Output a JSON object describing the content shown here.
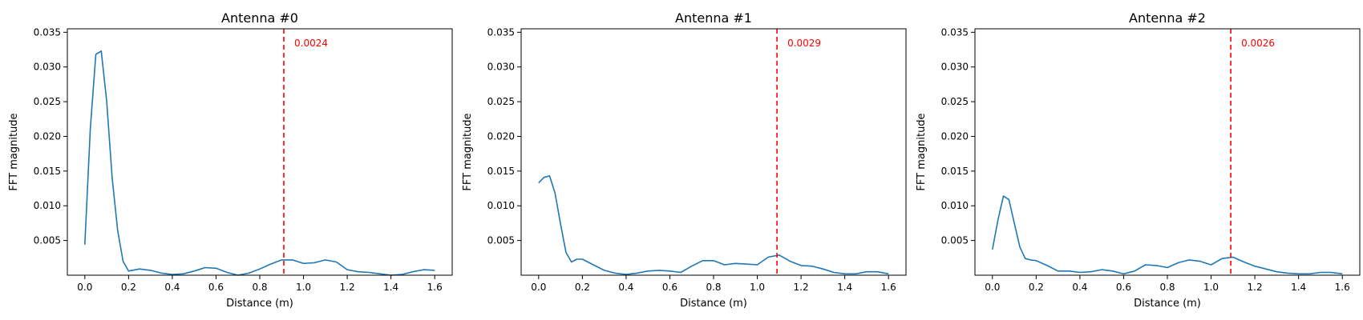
{
  "chart_data": [
    {
      "type": "line",
      "title": "Antenna #0",
      "xlabel": "Distance (m)",
      "ylabel": "FFT magnitude",
      "xlim": [
        -0.08,
        1.68
      ],
      "ylim": [
        0.0,
        0.0355
      ],
      "xticks": [
        0.0,
        0.2,
        0.4,
        0.6,
        0.8,
        1.0,
        1.2,
        1.4,
        1.6
      ],
      "xtick_labels": [
        "0.0",
        "0.2",
        "0.4",
        "0.6",
        "0.8",
        "1.0",
        "1.2",
        "1.4",
        "1.6"
      ],
      "yticks": [
        0.005,
        0.01,
        0.015,
        0.02,
        0.025,
        0.03,
        0.035
      ],
      "ytick_labels": [
        "0.005",
        "0.010",
        "0.015",
        "0.020",
        "0.025",
        "0.030",
        "0.035"
      ],
      "grid": false,
      "line_color": "#1f77b4",
      "x": [
        0.0,
        0.025,
        0.05,
        0.075,
        0.1,
        0.125,
        0.15,
        0.175,
        0.2,
        0.25,
        0.3,
        0.35,
        0.4,
        0.45,
        0.5,
        0.55,
        0.6,
        0.65,
        0.7,
        0.75,
        0.8,
        0.85,
        0.9,
        0.95,
        1.0,
        1.05,
        1.1,
        1.15,
        1.2,
        1.25,
        1.3,
        1.35,
        1.4,
        1.45,
        1.5,
        1.55,
        1.6
      ],
      "y": [
        0.0044,
        0.021,
        0.0318,
        0.0323,
        0.025,
        0.014,
        0.0065,
        0.002,
        0.0006,
        0.0009,
        0.0007,
        0.0003,
        0.0001,
        0.0002,
        0.0006,
        0.0011,
        0.001,
        0.0004,
        0.0,
        0.0003,
        0.0009,
        0.0016,
        0.0022,
        0.0022,
        0.0017,
        0.0018,
        0.0022,
        0.0019,
        0.0008,
        0.0005,
        0.0004,
        0.0002,
        0.0,
        0.0001,
        0.0005,
        0.0008,
        0.0007
      ],
      "vline": {
        "x": 0.91,
        "color": "#ff0000",
        "style": "dashed",
        "label": "0.0024"
      }
    },
    {
      "type": "line",
      "title": "Antenna #1",
      "xlabel": "Distance (m)",
      "ylabel": "FFT magnitude",
      "xlim": [
        -0.08,
        1.68
      ],
      "ylim": [
        0.0,
        0.0355
      ],
      "xticks": [
        0.0,
        0.2,
        0.4,
        0.6,
        0.8,
        1.0,
        1.2,
        1.4,
        1.6
      ],
      "xtick_labels": [
        "0.0",
        "0.2",
        "0.4",
        "0.6",
        "0.8",
        "1.0",
        "1.2",
        "1.4",
        "1.6"
      ],
      "yticks": [
        0.005,
        0.01,
        0.015,
        0.02,
        0.025,
        0.03,
        0.035
      ],
      "ytick_labels": [
        "0.005",
        "0.010",
        "0.015",
        "0.020",
        "0.025",
        "0.030",
        "0.035"
      ],
      "grid": false,
      "line_color": "#1f77b4",
      "x": [
        0.0,
        0.025,
        0.05,
        0.075,
        0.1,
        0.125,
        0.15,
        0.175,
        0.2,
        0.25,
        0.3,
        0.35,
        0.4,
        0.45,
        0.5,
        0.55,
        0.6,
        0.65,
        0.7,
        0.75,
        0.8,
        0.85,
        0.9,
        0.95,
        1.0,
        1.05,
        1.1,
        1.15,
        1.2,
        1.25,
        1.3,
        1.35,
        1.4,
        1.45,
        1.5,
        1.55,
        1.6
      ],
      "y": [
        0.0133,
        0.0141,
        0.0143,
        0.0118,
        0.0074,
        0.0033,
        0.0019,
        0.0023,
        0.0023,
        0.0015,
        0.0007,
        0.0003,
        0.0001,
        0.0003,
        0.0006,
        0.0007,
        0.0006,
        0.0004,
        0.0013,
        0.0021,
        0.0021,
        0.0015,
        0.0017,
        0.0016,
        0.0015,
        0.0026,
        0.0029,
        0.002,
        0.0014,
        0.0013,
        0.0009,
        0.0004,
        0.0002,
        0.0002,
        0.0005,
        0.0005,
        0.0002
      ],
      "vline": {
        "x": 1.09,
        "color": "#ff0000",
        "style": "dashed",
        "label": "0.0029"
      }
    },
    {
      "type": "line",
      "title": "Antenna #2",
      "xlabel": "Distance (m)",
      "ylabel": "FFT magnitude",
      "xlim": [
        -0.08,
        1.68
      ],
      "ylim": [
        0.0,
        0.0355
      ],
      "xticks": [
        0.0,
        0.2,
        0.4,
        0.6,
        0.8,
        1.0,
        1.2,
        1.4,
        1.6
      ],
      "xtick_labels": [
        "0.0",
        "0.2",
        "0.4",
        "0.6",
        "0.8",
        "1.0",
        "1.2",
        "1.4",
        "1.6"
      ],
      "yticks": [
        0.005,
        0.01,
        0.015,
        0.02,
        0.025,
        0.03,
        0.035
      ],
      "ytick_labels": [
        "0.005",
        "0.010",
        "0.015",
        "0.020",
        "0.025",
        "0.030",
        "0.035"
      ],
      "grid": false,
      "line_color": "#1f77b4",
      "x": [
        0.0,
        0.025,
        0.05,
        0.075,
        0.1,
        0.125,
        0.15,
        0.175,
        0.2,
        0.25,
        0.3,
        0.35,
        0.4,
        0.45,
        0.5,
        0.55,
        0.6,
        0.65,
        0.7,
        0.75,
        0.8,
        0.85,
        0.9,
        0.95,
        1.0,
        1.05,
        1.1,
        1.15,
        1.2,
        1.25,
        1.3,
        1.35,
        1.4,
        1.45,
        1.5,
        1.55,
        1.6
      ],
      "y": [
        0.0037,
        0.0079,
        0.0114,
        0.0109,
        0.0075,
        0.0041,
        0.0024,
        0.0022,
        0.0021,
        0.0014,
        0.0006,
        0.0006,
        0.0004,
        0.0005,
        0.0008,
        0.0006,
        0.0002,
        0.0006,
        0.0015,
        0.0014,
        0.0011,
        0.0018,
        0.0022,
        0.002,
        0.0015,
        0.0024,
        0.0026,
        0.0019,
        0.0013,
        0.0009,
        0.0005,
        0.0003,
        0.0002,
        0.0002,
        0.0004,
        0.0004,
        0.0002
      ],
      "vline": {
        "x": 1.09,
        "color": "#ff0000",
        "style": "dashed",
        "label": "0.0026"
      }
    }
  ]
}
